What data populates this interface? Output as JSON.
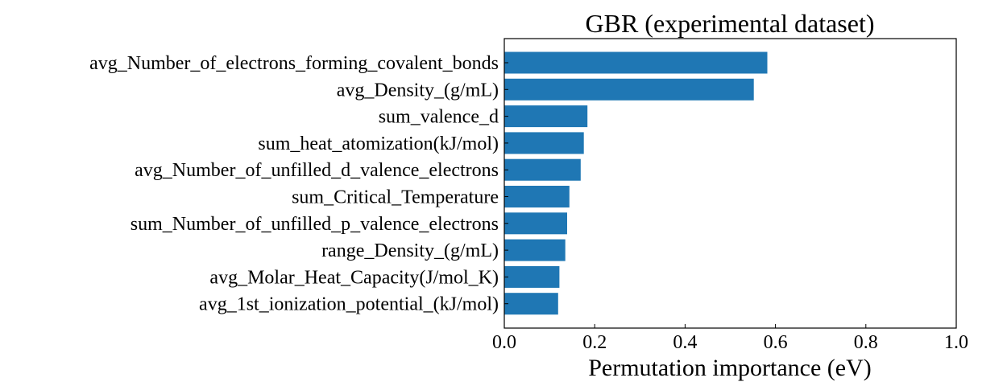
{
  "chart_data": {
    "type": "bar",
    "orientation": "horizontal",
    "title": "GBR (experimental dataset)",
    "xlabel": "Permutation importance (eV)",
    "ylabel": "",
    "xlim": [
      0.0,
      1.0
    ],
    "xticks": [
      "0.0",
      "0.2",
      "0.4",
      "0.6",
      "0.8",
      "1.0"
    ],
    "grid": false,
    "bar_color": "#1f77b4",
    "categories": [
      "avg_Number_of_electrons_forming_covalent_bonds",
      "avg_Density_(g/mL)",
      "sum_valence_d",
      "sum_heat_atomization(kJ/mol)",
      "avg_Number_of_unfilled_d_valence_electrons",
      "sum_Critical_Temperature",
      "sum_Number_of_unfilled_p_valence_electrons",
      "range_Density_(g/mL)",
      "avg_Molar_Heat_Capacity(J/mol_K)",
      "avg_1st_ionization_potential_(kJ/mol)"
    ],
    "values": [
      0.582,
      0.552,
      0.184,
      0.176,
      0.169,
      0.144,
      0.139,
      0.135,
      0.122,
      0.119
    ]
  }
}
